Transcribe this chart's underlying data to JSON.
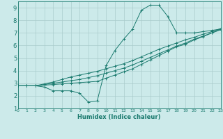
{
  "bg_color": "#cceaea",
  "grid_color": "#aacccc",
  "line_color": "#1a7a6e",
  "xlabel": "Humidex (Indice chaleur)",
  "xlim": [
    0,
    23
  ],
  "ylim": [
    1,
    9.5
  ],
  "xticks": [
    0,
    1,
    2,
    3,
    4,
    5,
    6,
    7,
    8,
    9,
    10,
    11,
    12,
    13,
    14,
    15,
    16,
    17,
    18,
    19,
    20,
    21,
    22,
    23
  ],
  "yticks": [
    1,
    2,
    3,
    4,
    5,
    6,
    7,
    8,
    9
  ],
  "series": [
    {
      "x": [
        0,
        1,
        2,
        3,
        4,
        5,
        6,
        7,
        8,
        9,
        10,
        11,
        12,
        13,
        14,
        15,
        16,
        17,
        18,
        19,
        20,
        21,
        22,
        23
      ],
      "y": [
        2.8,
        2.8,
        2.8,
        2.7,
        2.4,
        2.4,
        2.4,
        2.2,
        1.5,
        1.6,
        4.4,
        5.6,
        6.5,
        7.3,
        8.8,
        9.2,
        9.2,
        8.3,
        7.0,
        7.0,
        7.0,
        7.1,
        7.2,
        7.3
      ]
    },
    {
      "x": [
        0,
        1,
        2,
        3,
        4,
        5,
        6,
        7,
        8,
        9,
        10,
        11,
        12,
        13,
        14,
        15,
        16,
        17,
        18,
        19,
        20,
        21,
        22,
        23
      ],
      "y": [
        2.8,
        2.8,
        2.8,
        2.85,
        2.9,
        2.95,
        3.0,
        3.05,
        3.1,
        3.15,
        3.4,
        3.65,
        3.9,
        4.15,
        4.5,
        4.85,
        5.2,
        5.55,
        5.9,
        6.1,
        6.45,
        6.7,
        7.0,
        7.25
      ]
    },
    {
      "x": [
        0,
        1,
        2,
        3,
        4,
        5,
        6,
        7,
        8,
        9,
        10,
        11,
        12,
        13,
        14,
        15,
        16,
        17,
        18,
        19,
        20,
        21,
        22,
        23
      ],
      "y": [
        2.8,
        2.8,
        2.8,
        2.9,
        3.0,
        3.1,
        3.2,
        3.3,
        3.45,
        3.6,
        3.8,
        4.0,
        4.2,
        4.45,
        4.75,
        5.05,
        5.35,
        5.65,
        5.95,
        6.2,
        6.5,
        6.75,
        7.0,
        7.3
      ]
    },
    {
      "x": [
        0,
        1,
        2,
        3,
        4,
        5,
        6,
        7,
        8,
        9,
        10,
        11,
        12,
        13,
        14,
        15,
        16,
        17,
        18,
        19,
        20,
        21,
        22,
        23
      ],
      "y": [
        2.8,
        2.8,
        2.8,
        2.95,
        3.1,
        3.3,
        3.5,
        3.65,
        3.8,
        3.95,
        4.15,
        4.35,
        4.55,
        4.8,
        5.1,
        5.4,
        5.7,
        5.95,
        6.2,
        6.45,
        6.65,
        6.9,
        7.1,
        7.35
      ]
    }
  ]
}
